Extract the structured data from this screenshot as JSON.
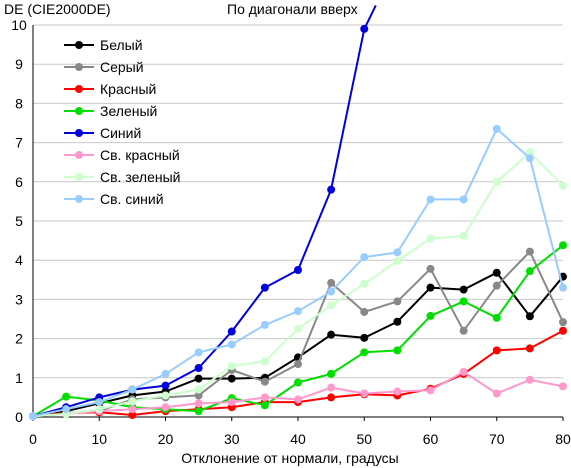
{
  "chart_data": {
    "type": "line",
    "title": "По диагонали вверх",
    "ylabel": "DE (CIE2000DE)",
    "xlabel": "Отклонение от нормали, градусы",
    "x": [
      0,
      5,
      10,
      15,
      20,
      25,
      30,
      35,
      40,
      45,
      50,
      55,
      60,
      65,
      70,
      75,
      80
    ],
    "xlim": [
      0,
      80
    ],
    "ylim": [
      0,
      10
    ],
    "x_ticks": [
      0,
      10,
      20,
      30,
      40,
      50,
      60,
      70,
      80
    ],
    "y_ticks": [
      0,
      1,
      2,
      3,
      4,
      5,
      6,
      7,
      8,
      9,
      10
    ],
    "grid": "horizontal",
    "legend_position": "top-left",
    "series": [
      {
        "name": "Белый",
        "color": "#000000",
        "values": [
          0.02,
          0.15,
          0.35,
          0.55,
          0.65,
          0.98,
          0.98,
          1.0,
          1.52,
          2.1,
          2.02,
          2.43,
          3.3,
          3.25,
          3.68,
          2.57,
          3.58
        ]
      },
      {
        "name": "Серый",
        "color": "#888888",
        "values": [
          0.02,
          0.1,
          0.15,
          0.45,
          0.5,
          0.55,
          1.2,
          0.9,
          1.35,
          3.42,
          2.68,
          2.95,
          3.78,
          2.2,
          3.35,
          4.22,
          2.42
        ]
      },
      {
        "name": "Красный",
        "color": "#ff0000",
        "values": [
          0.02,
          0.1,
          0.12,
          0.05,
          0.15,
          0.2,
          0.25,
          0.38,
          0.38,
          0.5,
          0.58,
          0.55,
          0.72,
          1.1,
          1.7,
          1.75,
          2.2
        ]
      },
      {
        "name": "Зеленый",
        "color": "#00dd00",
        "values": [
          0.02,
          0.52,
          0.42,
          0.25,
          0.2,
          0.15,
          0.48,
          0.3,
          0.88,
          1.1,
          1.65,
          1.7,
          2.58,
          2.95,
          2.53,
          3.72,
          4.38
        ]
      },
      {
        "name": "Синий",
        "color": "#0000dd",
        "values": [
          0.02,
          0.25,
          0.5,
          0.7,
          0.8,
          1.25,
          2.18,
          3.3,
          3.75,
          5.8,
          9.9,
          null,
          null,
          null,
          null,
          null,
          null
        ],
        "continues_above": 10.5
      },
      {
        "name": "Св. красный",
        "color": "#ff99cc",
        "values": [
          0.02,
          0.08,
          0.15,
          0.2,
          0.25,
          0.35,
          0.38,
          0.5,
          0.45,
          0.75,
          0.6,
          0.65,
          0.68,
          1.15,
          0.6,
          0.95,
          0.78
        ]
      },
      {
        "name": "Св. зеленый",
        "color": "#ccffcc",
        "values": [
          0.02,
          0.08,
          0.2,
          0.4,
          0.55,
          0.7,
          1.3,
          1.42,
          2.25,
          2.85,
          3.4,
          3.98,
          4.55,
          4.62,
          6.0,
          6.75,
          5.9
        ]
      },
      {
        "name": "Св. синий",
        "color": "#99ccff",
        "values": [
          0.02,
          0.2,
          0.38,
          0.7,
          1.1,
          1.65,
          1.85,
          2.35,
          2.7,
          3.2,
          4.08,
          4.2,
          5.55,
          5.55,
          7.35,
          6.6,
          3.3
        ]
      }
    ]
  }
}
